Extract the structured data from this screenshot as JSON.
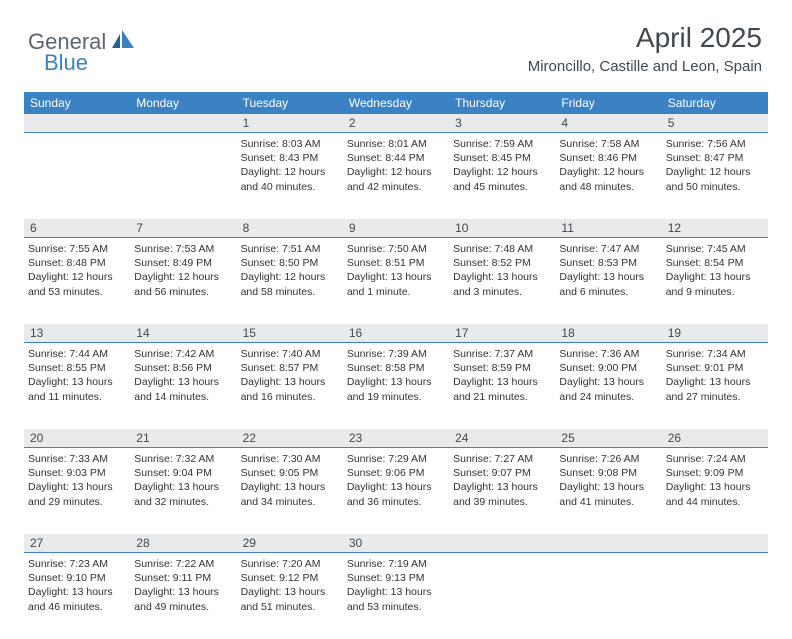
{
  "logo": {
    "part1": "General",
    "part2": "Blue"
  },
  "header": {
    "month_title": "April 2025",
    "location": "Mironcillo, Castille and Leon, Spain"
  },
  "colors": {
    "header_bg": "#3b82c4",
    "header_text": "#ffffff",
    "daynum_bg": "#e9eaec",
    "daynum_border": "#3b82c4",
    "body_text": "#333333",
    "title_text": "#404850",
    "logo_gray": "#5a6570",
    "logo_blue": "#3b82c4",
    "background": "#ffffff"
  },
  "typography": {
    "title_fontsize": 28,
    "location_fontsize": 15,
    "dayheader_fontsize": 12,
    "daynum_fontsize": 12,
    "cell_fontsize": 10.5
  },
  "day_names": [
    "Sunday",
    "Monday",
    "Tuesday",
    "Wednesday",
    "Thursday",
    "Friday",
    "Saturday"
  ],
  "weeks": [
    {
      "nums": [
        "",
        "",
        "1",
        "2",
        "3",
        "4",
        "5"
      ],
      "cells": [
        "",
        "",
        "Sunrise: 8:03 AM\nSunset: 8:43 PM\nDaylight: 12 hours and 40 minutes.",
        "Sunrise: 8:01 AM\nSunset: 8:44 PM\nDaylight: 12 hours and 42 minutes.",
        "Sunrise: 7:59 AM\nSunset: 8:45 PM\nDaylight: 12 hours and 45 minutes.",
        "Sunrise: 7:58 AM\nSunset: 8:46 PM\nDaylight: 12 hours and 48 minutes.",
        "Sunrise: 7:56 AM\nSunset: 8:47 PM\nDaylight: 12 hours and 50 minutes."
      ]
    },
    {
      "nums": [
        "6",
        "7",
        "8",
        "9",
        "10",
        "11",
        "12"
      ],
      "cells": [
        "Sunrise: 7:55 AM\nSunset: 8:48 PM\nDaylight: 12 hours and 53 minutes.",
        "Sunrise: 7:53 AM\nSunset: 8:49 PM\nDaylight: 12 hours and 56 minutes.",
        "Sunrise: 7:51 AM\nSunset: 8:50 PM\nDaylight: 12 hours and 58 minutes.",
        "Sunrise: 7:50 AM\nSunset: 8:51 PM\nDaylight: 13 hours and 1 minute.",
        "Sunrise: 7:48 AM\nSunset: 8:52 PM\nDaylight: 13 hours and 3 minutes.",
        "Sunrise: 7:47 AM\nSunset: 8:53 PM\nDaylight: 13 hours and 6 minutes.",
        "Sunrise: 7:45 AM\nSunset: 8:54 PM\nDaylight: 13 hours and 9 minutes."
      ]
    },
    {
      "nums": [
        "13",
        "14",
        "15",
        "16",
        "17",
        "18",
        "19"
      ],
      "cells": [
        "Sunrise: 7:44 AM\nSunset: 8:55 PM\nDaylight: 13 hours and 11 minutes.",
        "Sunrise: 7:42 AM\nSunset: 8:56 PM\nDaylight: 13 hours and 14 minutes.",
        "Sunrise: 7:40 AM\nSunset: 8:57 PM\nDaylight: 13 hours and 16 minutes.",
        "Sunrise: 7:39 AM\nSunset: 8:58 PM\nDaylight: 13 hours and 19 minutes.",
        "Sunrise: 7:37 AM\nSunset: 8:59 PM\nDaylight: 13 hours and 21 minutes.",
        "Sunrise: 7:36 AM\nSunset: 9:00 PM\nDaylight: 13 hours and 24 minutes.",
        "Sunrise: 7:34 AM\nSunset: 9:01 PM\nDaylight: 13 hours and 27 minutes."
      ]
    },
    {
      "nums": [
        "20",
        "21",
        "22",
        "23",
        "24",
        "25",
        "26"
      ],
      "cells": [
        "Sunrise: 7:33 AM\nSunset: 9:03 PM\nDaylight: 13 hours and 29 minutes.",
        "Sunrise: 7:32 AM\nSunset: 9:04 PM\nDaylight: 13 hours and 32 minutes.",
        "Sunrise: 7:30 AM\nSunset: 9:05 PM\nDaylight: 13 hours and 34 minutes.",
        "Sunrise: 7:29 AM\nSunset: 9:06 PM\nDaylight: 13 hours and 36 minutes.",
        "Sunrise: 7:27 AM\nSunset: 9:07 PM\nDaylight: 13 hours and 39 minutes.",
        "Sunrise: 7:26 AM\nSunset: 9:08 PM\nDaylight: 13 hours and 41 minutes.",
        "Sunrise: 7:24 AM\nSunset: 9:09 PM\nDaylight: 13 hours and 44 minutes."
      ]
    },
    {
      "nums": [
        "27",
        "28",
        "29",
        "30",
        "",
        "",
        ""
      ],
      "cells": [
        "Sunrise: 7:23 AM\nSunset: 9:10 PM\nDaylight: 13 hours and 46 minutes.",
        "Sunrise: 7:22 AM\nSunset: 9:11 PM\nDaylight: 13 hours and 49 minutes.",
        "Sunrise: 7:20 AM\nSunset: 9:12 PM\nDaylight: 13 hours and 51 minutes.",
        "Sunrise: 7:19 AM\nSunset: 9:13 PM\nDaylight: 13 hours and 53 minutes.",
        "",
        "",
        ""
      ]
    }
  ]
}
